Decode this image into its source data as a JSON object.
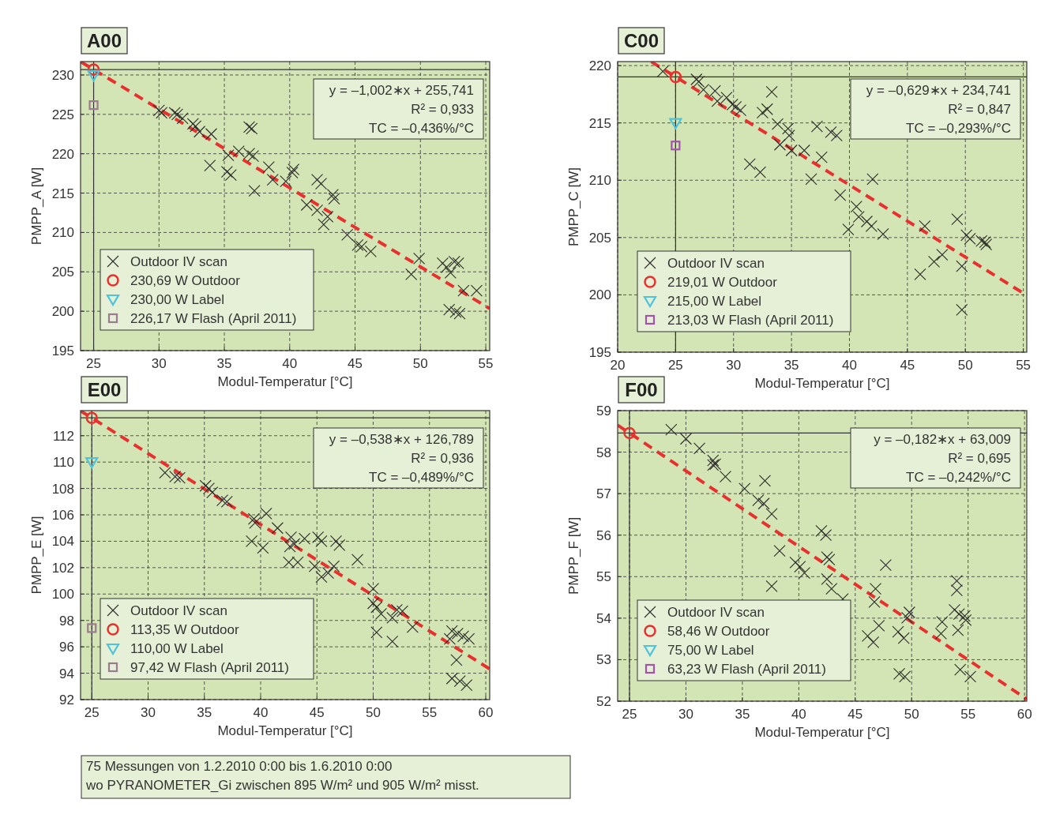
{
  "chart_data": [
    {
      "type": "scatter",
      "title": "A00",
      "xlabel": "Modul-Temperatur [°C]",
      "ylabel": "PMPP_A [W]",
      "xlim": [
        24,
        55.3
      ],
      "ylim": [
        195,
        231.7
      ],
      "xticks": [
        25,
        30,
        35,
        40,
        45,
        50,
        55
      ],
      "yticks": [
        195,
        200,
        205,
        210,
        215,
        220,
        225,
        230
      ],
      "grid": true,
      "legend": "bottom left",
      "annotations": [
        "y = –1,002∗x + 255,741",
        "R² = 0,933",
        "TC = –0,436%/°C"
      ],
      "ref_lines": [
        {
          "axis": "x",
          "value": 25,
          "color": "#333333"
        },
        {
          "axis": "y",
          "value": 230.69,
          "color": "#333333"
        }
      ],
      "series": [
        {
          "name": "Outdoor IV scan",
          "type": "scatter",
          "marker": "cross",
          "color": "#2b2b2b",
          "x": [
            30.0,
            30.2,
            31.2,
            31.4,
            31.8,
            32.6,
            32.8,
            33.1,
            34.0,
            37.1,
            36.9,
            33.9,
            35.3,
            35.2,
            35.5,
            36.1,
            36.9,
            37.2,
            37.3,
            38.4,
            38.7,
            39.7,
            40.3,
            40.2,
            42.1,
            42.4,
            43.3,
            43.4,
            41.3,
            42.1,
            42.6,
            42.9,
            44.4,
            45.2,
            45.5,
            46.2,
            49.3,
            49.9,
            51.7,
            52.0,
            52.3,
            52.9,
            52.6,
            53.3,
            54.3,
            52.2,
            52.7,
            53.0
          ],
          "values": [
            225.5,
            225.2,
            225.2,
            225.0,
            224.5,
            223.8,
            223.5,
            222.8,
            222.5,
            223.2,
            223.4,
            218.5,
            219.8,
            217.7,
            217.3,
            220.3,
            220.0,
            219.7,
            215.3,
            218.3,
            216.7,
            216.5,
            218.0,
            217.6,
            216.7,
            216.2,
            214.8,
            214.3,
            213.5,
            212.8,
            211.0,
            212.0,
            209.7,
            208.4,
            208.2,
            207.6,
            204.7,
            206.7,
            206.1,
            205.6,
            204.9,
            206.1,
            206.3,
            202.6,
            202.6,
            200.2,
            199.9,
            199.7
          ]
        },
        {
          "name": "230,69 W Outdoor",
          "type": "scatter",
          "marker": "circle",
          "color": "#e8312f",
          "x": [
            25
          ],
          "values": [
            230.69
          ]
        },
        {
          "name": "230,00 W Label",
          "type": "scatter",
          "marker": "triangle",
          "color": "#4fc3dc",
          "x": [
            25
          ],
          "values": [
            230.0
          ]
        },
        {
          "name": "226,17 W Flash (April 2011)",
          "type": "scatter",
          "marker": "square",
          "color": "#9b7b8e",
          "x": [
            25
          ],
          "values": [
            226.17
          ]
        },
        {
          "type": "line",
          "line_style": "dashed",
          "color": "#e8312f",
          "x": [
            24,
            55.3
          ],
          "values": [
            231.69,
            200.33
          ]
        }
      ]
    },
    {
      "type": "scatter",
      "title": "C00",
      "xlabel": "Modul-Temperatur [°C]",
      "ylabel": "PMPP_C [W]",
      "xlim": [
        20,
        55.3
      ],
      "ylim": [
        195,
        220.35
      ],
      "xticks": [
        20,
        25,
        30,
        35,
        40,
        45,
        50,
        55
      ],
      "yticks": [
        195,
        200,
        205,
        210,
        215,
        220
      ],
      "grid": true,
      "legend": "bottom left",
      "annotations": [
        "y = –0,629∗x + 234,741",
        "R² = 0,847",
        "TC = –0,293%/°C"
      ],
      "ref_lines": [
        {
          "axis": "x",
          "value": 25,
          "color": "#333333"
        },
        {
          "axis": "y",
          "value": 219.01,
          "color": "#333333"
        }
      ],
      "series": [
        {
          "name": "Outdoor IV scan",
          "type": "scatter",
          "marker": "cross",
          "color": "#2b2b2b",
          "x": [
            23.9,
            26.8,
            27.0,
            27.4,
            28.4,
            28.6,
            29.4,
            29.9,
            30.2,
            30.6,
            33.3,
            32.5,
            32.9,
            33.8,
            34.7,
            34.8,
            34.0,
            35.0,
            36.1,
            31.4,
            32.3,
            37.2,
            38.4,
            38.9,
            37.6,
            36.7,
            42.0,
            39.2,
            40.6,
            40.8,
            41.5,
            41.9,
            39.9,
            42.9,
            46.5,
            46.1,
            47.3,
            48.0,
            49.3,
            49.7,
            49.7,
            50.1,
            50.4,
            51.4,
            51.7,
            51.8
          ],
          "values": [
            219.5,
            218.8,
            218.6,
            217.9,
            217.8,
            216.9,
            217.2,
            216.6,
            216.4,
            216.1,
            217.7,
            215.9,
            216.2,
            214.9,
            214.5,
            213.9,
            213.1,
            212.6,
            212.6,
            211.4,
            210.7,
            214.7,
            214.2,
            213.9,
            212.0,
            210.1,
            210.1,
            208.7,
            207.7,
            206.8,
            206.4,
            206.0,
            205.7,
            205.3,
            206.0,
            201.8,
            202.9,
            203.5,
            206.6,
            202.5,
            198.7,
            205.2,
            204.9,
            204.7,
            204.6,
            204.4
          ]
        },
        {
          "name": "219,01 W Outdoor",
          "type": "scatter",
          "marker": "circle",
          "color": "#e8312f",
          "x": [
            25
          ],
          "values": [
            219.01
          ]
        },
        {
          "name": "215,00 W Label",
          "type": "scatter",
          "marker": "triangle",
          "color": "#4fc3dc",
          "x": [
            25
          ],
          "values": [
            215.0
          ]
        },
        {
          "name": "213,03 W Flash (April 2011)",
          "type": "scatter",
          "marker": "square",
          "color": "#a552ad",
          "x": [
            25
          ],
          "values": [
            213.03
          ]
        },
        {
          "type": "line",
          "line_style": "dashed",
          "color": "#e8312f",
          "x": [
            22.9,
            55.3
          ],
          "values": [
            220.34,
            199.96
          ]
        }
      ]
    },
    {
      "type": "scatter",
      "title": "E00",
      "xlabel": "Modul-Temperatur [°C]",
      "ylabel": "PMPP_E [W]",
      "xlim": [
        24,
        60.35
      ],
      "ylim": [
        92,
        113.9
      ],
      "xticks": [
        25,
        30,
        35,
        40,
        45,
        50,
        55,
        60
      ],
      "yticks": [
        92,
        94,
        96,
        98,
        100,
        102,
        104,
        106,
        108,
        110,
        112
      ],
      "grid": true,
      "legend": "bottom left",
      "annotations": [
        "y = –0,538∗x + 126,789",
        "R² = 0,936",
        "TC = –0,489%/°C"
      ],
      "ref_lines": [
        {
          "axis": "x",
          "value": 25,
          "color": "#333333"
        },
        {
          "axis": "y",
          "value": 113.35,
          "color": "#333333"
        }
      ],
      "series": [
        {
          "name": "Outdoor IV scan",
          "type": "scatter",
          "marker": "cross",
          "color": "#2b2b2b",
          "x": [
            31.5,
            32.4,
            32.8,
            35.1,
            35.4,
            35.7,
            36.6,
            37.0,
            39.4,
            39.5,
            40.5,
            39.2,
            40.2,
            41.5,
            42.7,
            42.6,
            43.0,
            43.9,
            42.5,
            43.3,
            45.1,
            45.4,
            46.7,
            47.0,
            44.8,
            45.4,
            46.0,
            46.5,
            48.6,
            50.0,
            50.0,
            50.3,
            50.7,
            50.3,
            51.7,
            52.1,
            52.6,
            51.7,
            53.5,
            57.0,
            57.5,
            58.0,
            58.5,
            56.8,
            57.4,
            57.0,
            57.7,
            58.3
          ],
          "values": [
            109.2,
            108.9,
            108.8,
            108.2,
            108.0,
            107.7,
            107.1,
            107.0,
            105.7,
            105.4,
            106.1,
            104.0,
            103.5,
            105.0,
            104.3,
            103.6,
            103.8,
            104.2,
            102.4,
            102.4,
            104.3,
            104.0,
            104.0,
            103.7,
            102.1,
            101.3,
            101.6,
            102.1,
            102.6,
            100.4,
            99.3,
            99.0,
            98.5,
            97.1,
            98.2,
            98.8,
            98.7,
            96.4,
            97.5,
            97.2,
            97.0,
            96.8,
            96.6,
            96.6,
            95.0,
            93.6,
            93.4,
            93.1
          ]
        },
        {
          "name": "113,35 W Outdoor",
          "type": "scatter",
          "marker": "circle",
          "color": "#e8312f",
          "x": [
            25
          ],
          "values": [
            113.35
          ]
        },
        {
          "name": "110,00 W Label",
          "type": "scatter",
          "marker": "triangle",
          "color": "#4fc3dc",
          "x": [
            25
          ],
          "values": [
            110.0
          ]
        },
        {
          "name": "97,42 W Flash (April 2011)",
          "type": "scatter",
          "marker": "square",
          "color": "#9b7b8e",
          "x": [
            25
          ],
          "values": [
            97.42
          ]
        },
        {
          "type": "line",
          "line_style": "dashed",
          "color": "#e8312f",
          "x": [
            24,
            60.35
          ],
          "values": [
            113.88,
            94.32
          ]
        }
      ]
    },
    {
      "type": "scatter",
      "title": "F00",
      "xlabel": "Modul-Temperatur [°C]",
      "ylabel": "PMPP_F [W]",
      "xlim": [
        23.95,
        60.2
      ],
      "ylim": [
        52,
        59
      ],
      "xticks": [
        25,
        30,
        35,
        40,
        45,
        50,
        55,
        60
      ],
      "yticks": [
        52,
        53,
        54,
        55,
        56,
        57,
        58,
        59
      ],
      "grid": true,
      "legend": "bottom left",
      "annotations": [
        "y = –0,182∗x + 63,009",
        "R² = 0,695",
        "TC = –0,242%/°C"
      ],
      "ref_lines": [
        {
          "axis": "x",
          "value": 25,
          "color": "#333333"
        },
        {
          "axis": "y",
          "value": 58.46,
          "color": "#333333"
        }
      ],
      "series": [
        {
          "name": "Outdoor IV scan",
          "type": "scatter",
          "marker": "cross",
          "color": "#2b2b2b",
          "x": [
            28.7,
            30.0,
            31.2,
            32.4,
            32.6,
            32.4,
            33.5,
            37.0,
            35.2,
            36.4,
            36.9,
            37.6,
            42.0,
            42.4,
            38.3,
            39.7,
            40.1,
            40.5,
            42.5,
            42.7,
            37.6,
            42.5,
            42.9,
            43.9,
            47.7,
            46.8,
            46.7,
            49.8,
            49.6,
            47.1,
            46.1,
            46.6,
            48.8,
            49.3,
            52.7,
            52.6,
            54.0,
            54.0,
            53.8,
            54.2,
            54.7,
            54.8,
            54.1,
            48.9,
            49.4,
            54.3,
            55.2
          ],
          "values": [
            58.54,
            58.32,
            58.09,
            57.8,
            57.71,
            57.69,
            57.41,
            57.31,
            57.12,
            56.84,
            56.76,
            56.51,
            56.1,
            56.0,
            55.62,
            55.34,
            55.24,
            55.09,
            55.47,
            55.41,
            54.77,
            54.94,
            54.71,
            54.46,
            55.28,
            54.71,
            54.39,
            54.14,
            54.01,
            53.82,
            53.57,
            53.42,
            53.67,
            53.52,
            53.91,
            53.63,
            54.9,
            54.67,
            54.2,
            54.1,
            54.05,
            53.95,
            53.71,
            52.66,
            52.59,
            52.76,
            52.59
          ]
        },
        {
          "name": "58,46 W Outdoor",
          "type": "scatter",
          "marker": "circle",
          "color": "#e8312f",
          "x": [
            25
          ],
          "values": [
            58.46
          ]
        },
        {
          "name": "75,00 W Label",
          "type": "scatter",
          "marker": "triangle",
          "color": "#4fc3dc",
          "x": [
            null
          ],
          "values": [
            null
          ]
        },
        {
          "name": "63,23 W Flash (April 2011)",
          "type": "scatter",
          "marker": "square",
          "color": "#a552ad",
          "x": [
            null
          ],
          "values": [
            null
          ]
        },
        {
          "type": "line",
          "line_style": "dashed",
          "color": "#e8312f",
          "x": [
            23.95,
            60.2
          ],
          "values": [
            58.65,
            52.05
          ]
        }
      ]
    },
    {
      "type": "other",
      "annotations": [
        "75 Messungen von 1.2.2010 0:00 bis 1.6.2010 0:00",
        "wo PYRANOMETER_Gi zwischen 895 W/m² und 905 W/m² misst."
      ]
    }
  ]
}
